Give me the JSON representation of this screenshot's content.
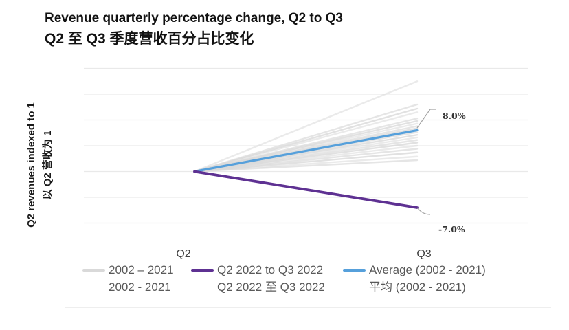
{
  "title": {
    "en": "Revenue quarterly percentage change, Q2 to Q3",
    "zh": "Q2 至 Q3 季度营收百分占比变化"
  },
  "y_axis": {
    "label_en": "Q2 revenues indexed to 1",
    "label_zh": "以 Q2 营收为 1"
  },
  "x_axis": {
    "left": "Q2",
    "right": "Q3"
  },
  "annotations": {
    "average_end": "8.0%",
    "current_end": "-7.0%"
  },
  "legend": {
    "items": [
      {
        "line1": "2002 – 2021",
        "line2": "2002 - 2021",
        "color": "#d9d9d9"
      },
      {
        "line1": "Q2 2022 to Q3 2022",
        "line2": "Q2 2022 至 Q3 2022",
        "color": "#5e3192"
      },
      {
        "line1": "Average (2002 - 2021)",
        "line2": "平均 (2002 - 2021)",
        "color": "#56a0db"
      }
    ]
  },
  "colors": {
    "gridline": "#e9e9e9",
    "historical": "#d9d9d9",
    "current": "#5e3192",
    "average": "#56a0db",
    "leader": "#a3a3a3",
    "legend_text": "#595959",
    "title_text": "#121212"
  },
  "chart_data": {
    "type": "line",
    "subtype": "slope",
    "title": "Revenue quarterly percentage change, Q2 to Q3 / Q2 至 Q3 季度营收百分占比变化",
    "xlabel": "",
    "ylabel": "Q2 revenues indexed to 1 / 以 Q2 营收为 1",
    "x": [
      "Q2",
      "Q3"
    ],
    "baseline_index": 1.0,
    "ylim": [
      0.9,
      1.2
    ],
    "gridline_step": 0.05,
    "gridline_values": [
      1.2,
      1.15,
      1.1,
      1.05,
      1.0,
      0.95,
      0.9
    ],
    "grid": true,
    "legend_position": "bottom",
    "series": [
      {
        "name": "2002 – 2021 (individual years)",
        "color": "#d9d9d9",
        "start_index": 1.0,
        "values_pct_change": [
          17.5,
          13.0,
          12.2,
          11.5,
          10.3,
          9.8,
          9.3,
          8.8,
          8.4,
          8.0,
          7.6,
          7.1,
          6.6,
          6.1,
          5.6,
          5.0,
          4.4,
          3.7,
          2.9,
          2.2
        ]
      },
      {
        "name": "Q2 2022 to Q3 2022",
        "color": "#5e3192",
        "start_index": 1.0,
        "values_pct_change": [
          -7.0
        ],
        "end_label": "-7.0%"
      },
      {
        "name": "Average (2002 - 2021)",
        "color": "#56a0db",
        "start_index": 1.0,
        "values_pct_change": [
          8.0
        ],
        "end_label": "8.0%"
      }
    ]
  }
}
